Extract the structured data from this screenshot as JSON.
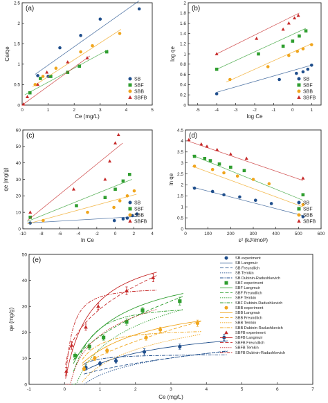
{
  "colors": {
    "SB": "#1f4e8c",
    "SBF": "#2f9e2f",
    "SBB": "#f0a51c",
    "SBFB": "#c62828"
  },
  "chart_data": [
    {
      "panel": "(a)",
      "type": "scatter",
      "xlabel": "Ce (mg/L)",
      "ylabel": "Ce/qe",
      "xlim": [
        0,
        5
      ],
      "ylim": [
        0,
        2.5
      ],
      "xticks": [
        0,
        1,
        2,
        3,
        4,
        5
      ],
      "yticks": [
        0,
        0.5,
        1.0,
        1.5,
        2.0,
        2.5
      ],
      "legend": [
        "SB",
        "SBF",
        "SBB",
        "SBFB"
      ],
      "legend_position": "bottom-right",
      "series": [
        {
          "name": "SB",
          "marker": "circle",
          "x": [
            0.6,
            1.0,
            1.45,
            2.25,
            3.0,
            4.5
          ],
          "y": [
            0.72,
            0.7,
            1.4,
            1.7,
            2.1,
            2.35
          ],
          "fit": [
            [
              0.5,
              0.75
            ],
            [
              4.5,
              2.55
            ]
          ]
        },
        {
          "name": "SBF",
          "marker": "square",
          "x": [
            0.3,
            0.7,
            1.1,
            1.75,
            2.2,
            3.25
          ],
          "y": [
            0.3,
            0.65,
            0.7,
            0.8,
            0.95,
            1.3
          ],
          "fit": [
            [
              0.1,
              0.25
            ],
            [
              3.3,
              1.35
            ]
          ]
        },
        {
          "name": "SBB",
          "marker": "circle",
          "x": [
            0.5,
            0.8,
            1.3,
            2.25,
            2.7,
            3.75
          ],
          "y": [
            0.5,
            0.7,
            0.9,
            1.3,
            1.45,
            1.75
          ],
          "fit": [
            [
              0.4,
              0.45
            ],
            [
              3.8,
              1.85
            ]
          ]
        },
        {
          "name": "SBFB",
          "marker": "triangle",
          "x": [
            0.05,
            0.2,
            0.6,
            0.95,
            1.75,
            2.5
          ],
          "y": [
            0.02,
            0.2,
            0.5,
            0.8,
            1.05,
            1.15
          ],
          "fit": [
            [
              0,
              0
            ],
            [
              2.6,
              1.2
            ]
          ]
        }
      ]
    },
    {
      "panel": "(b)",
      "type": "scatter",
      "xlabel": "log Ce",
      "ylabel": "log qe",
      "xlim": [
        -5.5,
        1.5
      ],
      "ylim": [
        0,
        2.0
      ],
      "xticks": [
        -5,
        -4,
        -3,
        -2,
        -1,
        0,
        1
      ],
      "yticks": [
        0,
        0.2,
        0.4,
        0.6,
        0.8,
        1.0,
        1.2,
        1.4,
        1.6,
        1.8,
        2.0
      ],
      "legend": [
        "SB",
        "SBF",
        "SBB",
        "SBFB"
      ],
      "legend_position": "bottom-right",
      "series": [
        {
          "name": "SB",
          "marker": "circle",
          "x": [
            -4.0,
            -0.7,
            0.2,
            0.55,
            0.8,
            1.0
          ],
          "y": [
            0.22,
            0.5,
            0.62,
            0.65,
            0.7,
            0.78
          ],
          "fit": [
            [
              -4.0,
              0.25
            ],
            [
              1.0,
              0.78
            ]
          ]
        },
        {
          "name": "SBF",
          "marker": "square",
          "x": [
            -4.0,
            -1.8,
            -0.5,
            0.0,
            0.35,
            0.7
          ],
          "y": [
            0.7,
            1.0,
            1.15,
            1.25,
            1.35,
            1.45
          ],
          "fit": [
            [
              -4.0,
              0.7
            ],
            [
              0.7,
              1.5
            ]
          ]
        },
        {
          "name": "SBB",
          "marker": "circle",
          "x": [
            -3.3,
            -1.3,
            -0.2,
            0.25,
            0.55,
            1.0
          ],
          "y": [
            0.5,
            0.75,
            0.97,
            1.05,
            1.1,
            1.18
          ],
          "fit": [
            [
              -3.5,
              0.45
            ],
            [
              1.0,
              1.2
            ]
          ]
        },
        {
          "name": "SBFB",
          "marker": "triangle",
          "x": [
            -4.0,
            -1.9,
            -0.5,
            -0.2,
            0.1,
            0.3
          ],
          "y": [
            1.0,
            1.3,
            1.48,
            1.6,
            1.7,
            1.75
          ],
          "fit": [
            [
              -4.0,
              1.0
            ],
            [
              0.35,
              1.8
            ]
          ]
        }
      ]
    },
    {
      "panel": "(c)",
      "type": "scatter",
      "xlabel": "ln Ce",
      "ylabel": "qe (mg/g)",
      "xlim": [
        -10,
        4
      ],
      "ylim": [
        0,
        60
      ],
      "xticks": [
        -10,
        -8,
        -6,
        -4,
        -2,
        0,
        2,
        4
      ],
      "yticks": [
        0,
        10,
        20,
        30,
        40,
        50,
        60
      ],
      "legend": [
        "SB",
        "SBF",
        "SBB",
        "SBFB"
      ],
      "legend_position": "bottom-right",
      "series": [
        {
          "name": "SB",
          "marker": "circle",
          "x": [
            -9.2,
            -0.1,
            0.85,
            1.3,
            1.85,
            2.35
          ],
          "y": [
            3.5,
            5.0,
            6.0,
            6.5,
            8.0,
            9.0
          ],
          "fit": [
            [
              -9.5,
              3.5
            ],
            [
              2.5,
              7.5
            ]
          ]
        },
        {
          "name": "SBF",
          "marker": "square",
          "x": [
            -9.2,
            -4.2,
            -1.1,
            0.0,
            0.85,
            1.55
          ],
          "y": [
            7.0,
            14.0,
            19.0,
            24.0,
            29.0,
            33.0
          ],
          "fit": [
            [
              -9.5,
              4.5
            ],
            [
              1.8,
              30.0
            ]
          ]
        },
        {
          "name": "SBB",
          "marker": "circle",
          "x": [
            -7.8,
            -3.0,
            -0.15,
            0.5,
            1.3,
            2.05
          ],
          "y": [
            5.0,
            10.0,
            13.0,
            17.0,
            20.0,
            23.0
          ],
          "fit": [
            [
              -9.5,
              3.0
            ],
            [
              2.3,
              21.0
            ]
          ]
        },
        {
          "name": "SBFB",
          "marker": "triangle",
          "x": [
            -9.2,
            -4.5,
            -1.1,
            -0.6,
            0.0,
            0.35
          ],
          "y": [
            10.0,
            24.0,
            30.0,
            41.0,
            52.0,
            57.0
          ],
          "fit": [
            [
              -9.5,
              5.0
            ],
            [
              0.8,
              52.0
            ]
          ]
        }
      ]
    },
    {
      "panel": "(d)",
      "type": "scatter",
      "xlabel": "ε² (kJ²/mol²)",
      "ylabel": "ln qe",
      "xlim": [
        0,
        600
      ],
      "ylim": [
        0,
        4.5
      ],
      "xticks": [
        0,
        100,
        200,
        300,
        400,
        500,
        600
      ],
      "yticks": [
        0,
        0.5,
        1.0,
        1.5,
        2.0,
        2.5,
        3.0,
        3.5,
        4.0,
        4.5
      ],
      "legend": [
        "SB",
        "SBF",
        "SBB",
        "SBFB"
      ],
      "legend_position": "bottom-right",
      "series": [
        {
          "name": "SB",
          "marker": "circle",
          "x": [
            40,
            120,
            170,
            240,
            310,
            380,
            520
          ],
          "y": [
            1.85,
            1.7,
            1.55,
            1.45,
            1.3,
            1.15,
            0.55
          ],
          "fit": [
            [
              30,
              1.9
            ],
            [
              520,
              0.6
            ]
          ]
        },
        {
          "name": "SBF",
          "marker": "square",
          "x": [
            40,
            85,
            110,
            150,
            200,
            260,
            520
          ],
          "y": [
            3.3,
            3.2,
            3.1,
            2.95,
            2.8,
            2.65,
            1.55
          ],
          "fit": [
            [
              30,
              3.35
            ],
            [
              520,
              1.3
            ]
          ]
        },
        {
          "name": "SBB",
          "marker": "circle",
          "x": [
            40,
            120,
            170,
            230,
            300,
            370,
            520
          ],
          "y": [
            2.85,
            2.7,
            2.55,
            2.4,
            2.25,
            2.05,
            1.1
          ],
          "fit": [
            [
              30,
              2.85
            ],
            [
              520,
              1.0
            ]
          ]
        },
        {
          "name": "SBFB",
          "marker": "triangle",
          "x": [
            15,
            70,
            95,
            140,
            200,
            270,
            520
          ],
          "y": [
            4.05,
            3.85,
            3.75,
            3.6,
            3.4,
            3.2,
            2.3
          ],
          "fit": [
            [
              10,
              4.0
            ],
            [
              520,
              2.2
            ]
          ]
        }
      ]
    },
    {
      "panel": "(e)",
      "type": "scatter",
      "xlabel": "Ce (mg/L)",
      "ylabel": "qe (mg/g)",
      "xlim": [
        -1,
        7
      ],
      "ylim": [
        0,
        50
      ],
      "xticks": [
        -1,
        0,
        1,
        2,
        3,
        4,
        5,
        6,
        7
      ],
      "yticks": [
        0,
        10,
        20,
        30,
        40,
        50
      ],
      "legend_position": "top-right",
      "legend": [
        "SB experiment",
        "SB Langmuir",
        "SB Freundlich",
        "SB Temkin",
        "SB Dubinin-Radushkevich",
        "SBF experiment",
        "SBF Langmuir",
        "SBF Freundlich",
        "SBF Temkin",
        "SBF Dubinin-Radushkevich",
        "SBB experiment",
        "SBB Langmuir",
        "SBB Freundlich",
        "SBB Temkin",
        "SBB Dubinin-Radushkevich",
        "SBFB experiment",
        "SBFB Langmuir",
        "SBFB Freundlich",
        "SBFB Temkin",
        "SBFB Dubinin-Radushkevich"
      ],
      "series": [
        {
          "name": "SB",
          "marker": "circle",
          "x": [
            0.6,
            1.0,
            1.45,
            2.25,
            3.25,
            4.5
          ],
          "y": [
            6.5,
            8.0,
            9.0,
            12.5,
            14.5,
            18.0
          ],
          "err": [
            1.0,
            0.8,
            0.8,
            1.2,
            1.0,
            1.2
          ],
          "params": {
            "qmax": 24,
            "KL": 0.5,
            "KF": 5.5,
            "n": 1.8,
            "A": 1.8,
            "B": 6.0,
            "qs": 11.5,
            "k": 0.35
          }
        },
        {
          "name": "SBF",
          "marker": "square",
          "x": [
            0.3,
            0.7,
            1.1,
            1.75,
            2.2,
            3.25
          ],
          "y": [
            11.0,
            14.5,
            18.0,
            24.0,
            28.5,
            32.0
          ],
          "err": [
            1.0,
            1.0,
            1.0,
            1.2,
            1.0,
            1.5
          ],
          "params": {
            "qmax": 48,
            "KL": 0.8,
            "KF": 18.5,
            "n": 2.0,
            "A": 3.0,
            "B": 12.5,
            "qs": 30.0,
            "k": 0.7
          }
        },
        {
          "name": "SBB",
          "marker": "circle",
          "x": [
            0.55,
            0.85,
            1.2,
            2.3,
            2.7,
            3.75
          ],
          "y": [
            6.0,
            10.0,
            13.0,
            18.0,
            21.0,
            23.5
          ],
          "err": [
            0.8,
            0.8,
            1.0,
            1.0,
            1.0,
            1.2
          ],
          "params": {
            "qmax": 35,
            "KL": 0.6,
            "KF": 11.0,
            "n": 1.7,
            "A": 2.2,
            "B": 9.0,
            "qs": 21.0,
            "k": 0.65
          }
        },
        {
          "name": "SBFB",
          "marker": "triangle",
          "x": [
            0.05,
            0.2,
            0.6,
            0.95,
            1.75,
            2.5
          ],
          "y": [
            5.0,
            15.0,
            22.0,
            30.0,
            36.0,
            41.0
          ],
          "err": [
            1.5,
            1.5,
            1.2,
            1.2,
            1.5,
            1.5
          ],
          "params": {
            "qmax": 55,
            "KL": 1.4,
            "KF": 29.0,
            "n": 2.6,
            "A": 6.0,
            "B": 10.5,
            "qs": 37.0,
            "k": 0.2
          }
        }
      ]
    }
  ]
}
